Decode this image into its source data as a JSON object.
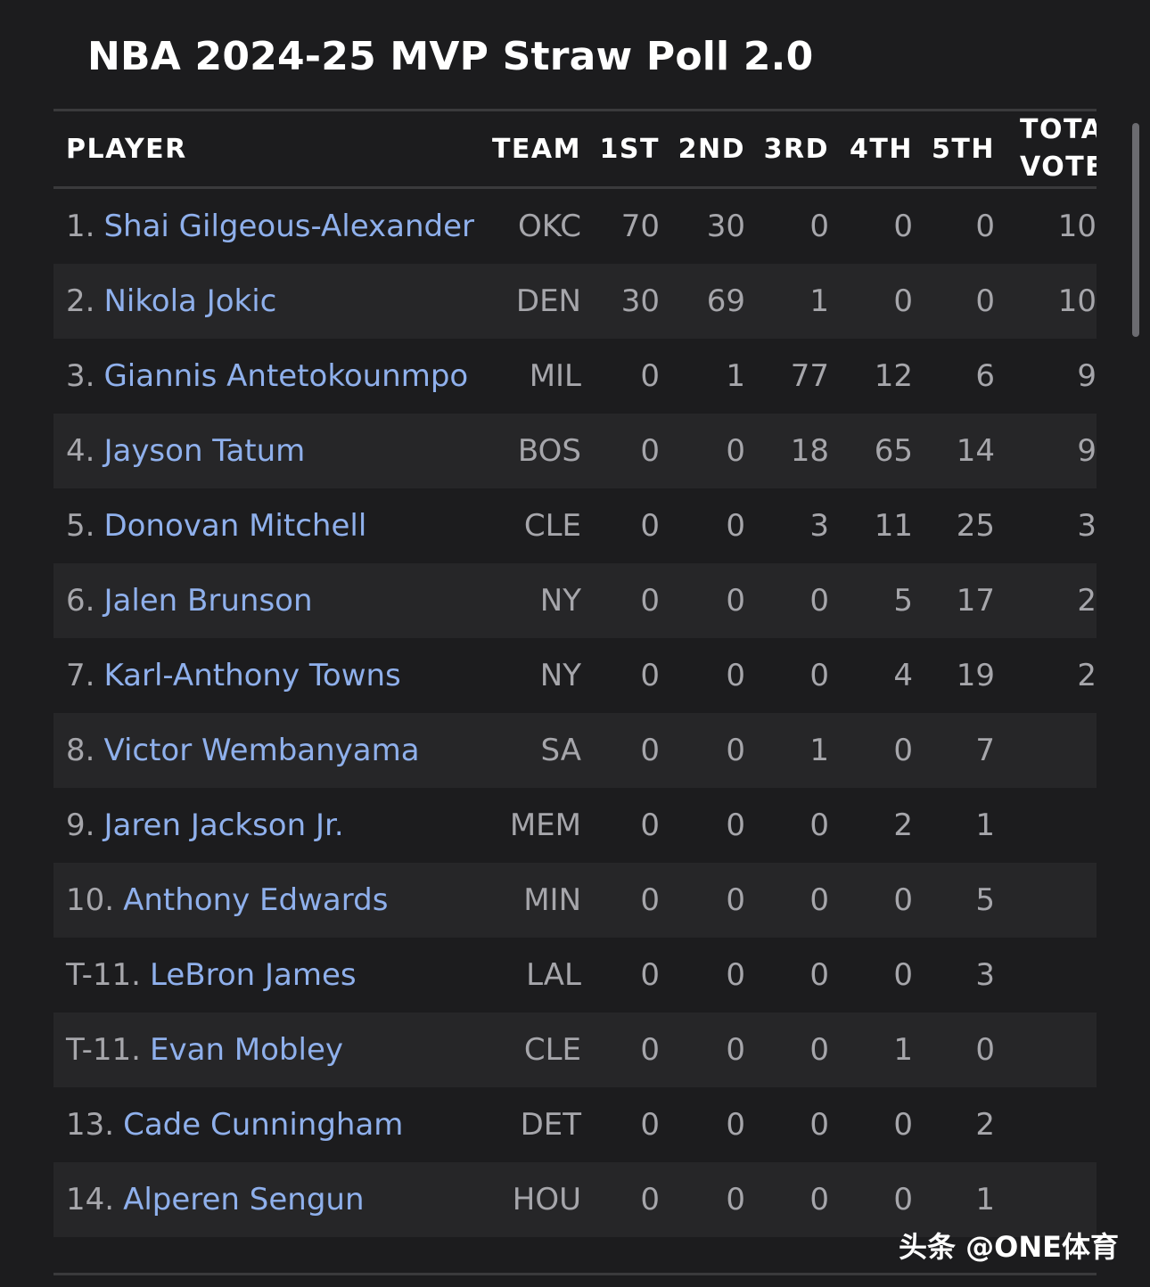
{
  "title": "NBA 2024-25 MVP Straw Poll 2.0",
  "headers": {
    "player": "PLAYER",
    "team": "TEAM",
    "first": "1ST",
    "second": "2ND",
    "third": "3RD",
    "fourth": "4TH",
    "fifth": "5TH",
    "total_line1": "TOTA",
    "total_line2": "VOTE"
  },
  "rows": [
    {
      "rank": "1.",
      "name": "Shai Gilgeous-Alexander",
      "team": "OKC",
      "first": "70",
      "second": "30",
      "third": "0",
      "fourth": "0",
      "fifth": "0",
      "total": "10"
    },
    {
      "rank": "2.",
      "name": "Nikola Jokic",
      "team": "DEN",
      "first": "30",
      "second": "69",
      "third": "1",
      "fourth": "0",
      "fifth": "0",
      "total": "10"
    },
    {
      "rank": "3.",
      "name": "Giannis Antetokounmpo",
      "team": "MIL",
      "first": "0",
      "second": "1",
      "third": "77",
      "fourth": "12",
      "fifth": "6",
      "total": "9"
    },
    {
      "rank": "4.",
      "name": "Jayson Tatum",
      "team": "BOS",
      "first": "0",
      "second": "0",
      "third": "18",
      "fourth": "65",
      "fifth": "14",
      "total": "9"
    },
    {
      "rank": "5.",
      "name": "Donovan Mitchell",
      "team": "CLE",
      "first": "0",
      "second": "0",
      "third": "3",
      "fourth": "11",
      "fifth": "25",
      "total": "3"
    },
    {
      "rank": "6.",
      "name": "Jalen Brunson",
      "team": "NY",
      "first": "0",
      "second": "0",
      "third": "0",
      "fourth": "5",
      "fifth": "17",
      "total": "2"
    },
    {
      "rank": "7.",
      "name": "Karl-Anthony Towns",
      "team": "NY",
      "first": "0",
      "second": "0",
      "third": "0",
      "fourth": "4",
      "fifth": "19",
      "total": "2"
    },
    {
      "rank": "8.",
      "name": "Victor Wembanyama",
      "team": "SA",
      "first": "0",
      "second": "0",
      "third": "1",
      "fourth": "0",
      "fifth": "7",
      "total": ""
    },
    {
      "rank": "9.",
      "name": "Jaren Jackson Jr.",
      "team": "MEM",
      "first": "0",
      "second": "0",
      "third": "0",
      "fourth": "2",
      "fifth": "1",
      "total": ""
    },
    {
      "rank": "10.",
      "name": "Anthony Edwards",
      "team": "MIN",
      "first": "0",
      "second": "0",
      "third": "0",
      "fourth": "0",
      "fifth": "5",
      "total": ""
    },
    {
      "rank": "T-11.",
      "name": "LeBron James",
      "team": "LAL",
      "first": "0",
      "second": "0",
      "third": "0",
      "fourth": "0",
      "fifth": "3",
      "total": ""
    },
    {
      "rank": "T-11.",
      "name": "Evan Mobley",
      "team": "CLE",
      "first": "0",
      "second": "0",
      "third": "0",
      "fourth": "1",
      "fifth": "0",
      "total": ""
    },
    {
      "rank": "13.",
      "name": "Cade Cunningham",
      "team": "DET",
      "first": "0",
      "second": "0",
      "third": "0",
      "fourth": "0",
      "fifth": "2",
      "total": ""
    },
    {
      "rank": "14.",
      "name": "Alperen Sengun",
      "team": "HOU",
      "first": "0",
      "second": "0",
      "third": "0",
      "fourth": "0",
      "fifth": "1",
      "total": ""
    }
  ],
  "watermark": "头条 @ONE体育",
  "colors": {
    "background": "#1c1c1e",
    "row_shade": "#262628",
    "player_link": "#8fb0ec",
    "muted_text": "#a6a6ab",
    "divider": "#3a3a3c"
  }
}
